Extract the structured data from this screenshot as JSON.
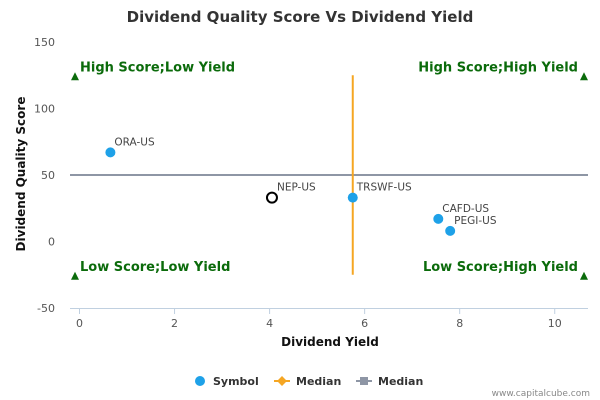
{
  "chart_data": {
    "type": "scatter",
    "title": "Dividend Quality Score Vs Dividend Yield",
    "xlabel": "Dividend Yield",
    "ylabel": "Dividend Quality Score",
    "xlim": [
      -0.2,
      10.7
    ],
    "ylim": [
      -50,
      150
    ],
    "xticks": [
      0,
      2,
      4,
      6,
      8,
      10
    ],
    "yticks": [
      -50,
      0,
      50,
      100,
      150
    ],
    "grid": false,
    "legend_position": "bottom",
    "series": [
      {
        "name": "Symbol",
        "type": "scatter",
        "color": "#1ea1e8",
        "points": [
          {
            "label": "ORA-US",
            "x": 0.65,
            "y": 67
          },
          {
            "label": "TRSWF-US",
            "x": 5.75,
            "y": 33
          },
          {
            "label": "CAFD-US",
            "x": 7.55,
            "y": 17
          },
          {
            "label": "PEGI-US",
            "x": 7.8,
            "y": 8
          }
        ]
      },
      {
        "name": "Median",
        "type": "vertical-line",
        "color": "#f5a623",
        "x": 5.75,
        "y_range": [
          -25,
          125
        ]
      },
      {
        "name": "Median",
        "type": "horizontal-line",
        "color": "#8e96a5",
        "y": 50
      }
    ],
    "highlight": {
      "label": "NEP-US",
      "x": 4.05,
      "y": 33
    },
    "quadrants": {
      "color": "#0b6b0b",
      "top_left": "High Score;Low Yield",
      "top_right": "High Score;High Yield",
      "bottom_left": "Low Score;Low Yield",
      "bottom_right": "Low Score;High Yield"
    }
  },
  "credit": "www.capitalcube.com"
}
